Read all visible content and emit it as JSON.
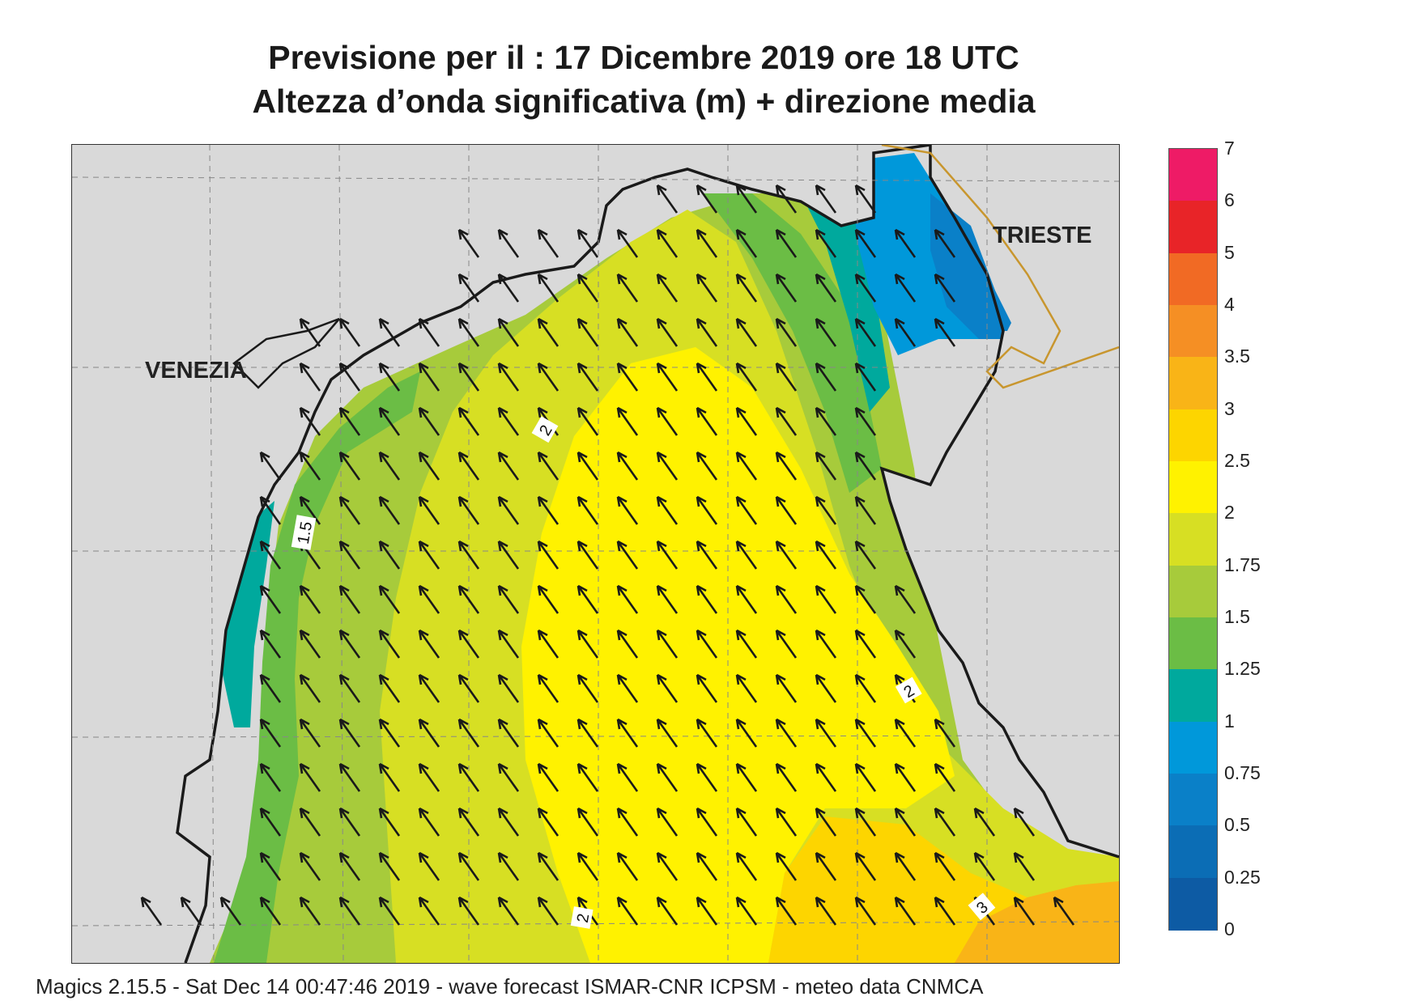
{
  "title_line1": "Previsione per il  :  17 Dicembre  2019   ore 18 UTC",
  "title_line2": "Altezza d’onda significativa (m) + direzione media",
  "cities": {
    "venezia": "VENEZIA",
    "trieste": "TRIESTE"
  },
  "contour_labels": [
    "2",
    "1.5",
    "2",
    "2",
    "3"
  ],
  "colorbar": {
    "labels": [
      "7",
      "6",
      "5",
      "4",
      "3.5",
      "3",
      "2.5",
      "2",
      "1.75",
      "1.5",
      "1.25",
      "1",
      "0.75",
      "0.5",
      "0.25",
      "0"
    ],
    "colors": [
      "#ee1b66",
      "#e82428",
      "#f16a24",
      "#f58f24",
      "#f9b417",
      "#fdd500",
      "#fff200",
      "#d7df23",
      "#a7cb3b",
      "#6bbd45",
      "#00a99d",
      "#0098da",
      "#0a80c8",
      "#0b6db5",
      "#0d5ba4"
    ]
  },
  "map_colors": {
    "land": "#d9d9d9",
    "coast": "#1a1a1a",
    "border": "#c8962e"
  },
  "wave_direction": "NW",
  "footer": "Magics 2.15.5 - Sat Dec 14 00:47:46 2019 - wave forecast  ISMAR-CNR  ICPSM - meteo data   CNMCA"
}
